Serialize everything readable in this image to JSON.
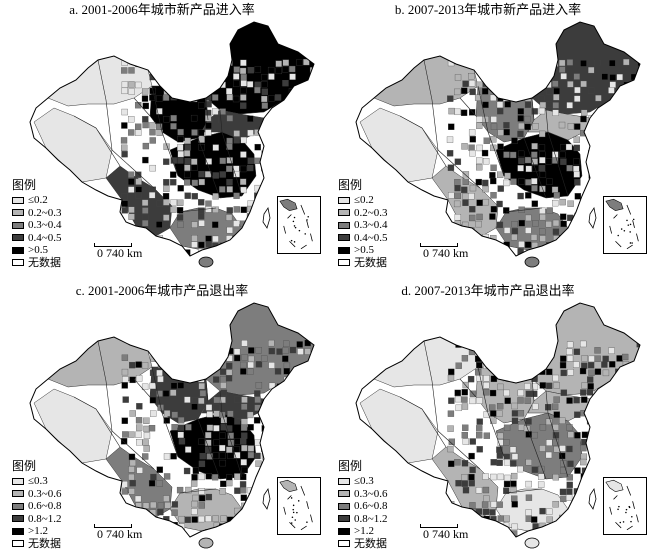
{
  "panels": [
    {
      "title": "a. 2001-2006年城市新产品进入率",
      "legend_title": "图例",
      "legend": [
        {
          "label": "≤0.2",
          "color": "#e6e6e6"
        },
        {
          "label": "0.2~0.3",
          "color": "#b4b4b4"
        },
        {
          "label": "0.3~0.4",
          "color": "#7d7d7d"
        },
        {
          "label": "0.4~0.5",
          "color": "#3c3c3c"
        },
        {
          "label": ">0.5",
          "color": "#000000"
        },
        {
          "label": "无数据",
          "color": "#ffffff"
        }
      ],
      "scale": "0  740 km",
      "dominant": [
        0,
        0,
        3,
        4,
        4,
        2,
        4,
        3
      ]
    },
    {
      "title": "b. 2007-2013年城市新产品进入率",
      "legend_title": "图例",
      "legend": [
        {
          "label": "≤0.2",
          "color": "#e6e6e6"
        },
        {
          "label": "0.2~0.3",
          "color": "#b4b4b4"
        },
        {
          "label": "0.3~0.4",
          "color": "#7d7d7d"
        },
        {
          "label": "0.4~0.5",
          "color": "#3c3c3c"
        },
        {
          "label": ">0.5",
          "color": "#000000"
        },
        {
          "label": "无数据",
          "color": "#ffffff"
        }
      ],
      "scale": "0  740 km",
      "dominant": [
        0,
        1,
        1,
        2,
        4,
        2,
        3,
        1
      ]
    },
    {
      "title": "c. 2001-2006年城市产品退出率",
      "legend_title": "图例",
      "legend": [
        {
          "label": "≤0.3",
          "color": "#e6e6e6"
        },
        {
          "label": "0.3~0.6",
          "color": "#b4b4b4"
        },
        {
          "label": "0.6~0.8",
          "color": "#7d7d7d"
        },
        {
          "label": "0.8~1.2",
          "color": "#3c3c3c"
        },
        {
          "label": ">1.2",
          "color": "#000000"
        },
        {
          "label": "无数据",
          "color": "#ffffff"
        }
      ],
      "scale": "0  740 km",
      "dominant": [
        0,
        1,
        2,
        3,
        4,
        1,
        2,
        3
      ]
    },
    {
      "title": "d. 2007-2013年城市产品退出率",
      "legend_title": "图例",
      "legend": [
        {
          "label": "≤0.3",
          "color": "#e6e6e6"
        },
        {
          "label": "0.3~0.6",
          "color": "#b4b4b4"
        },
        {
          "label": "0.6~0.8",
          "color": "#7d7d7d"
        },
        {
          "label": "0.8~1.2",
          "color": "#3c3c3c"
        },
        {
          "label": ">1.2",
          "color": "#000000"
        },
        {
          "label": "无数据",
          "color": "#ffffff"
        }
      ],
      "scale": "0  740 km",
      "dominant": [
        0,
        0,
        1,
        1,
        2,
        0,
        1,
        1
      ]
    }
  ]
}
